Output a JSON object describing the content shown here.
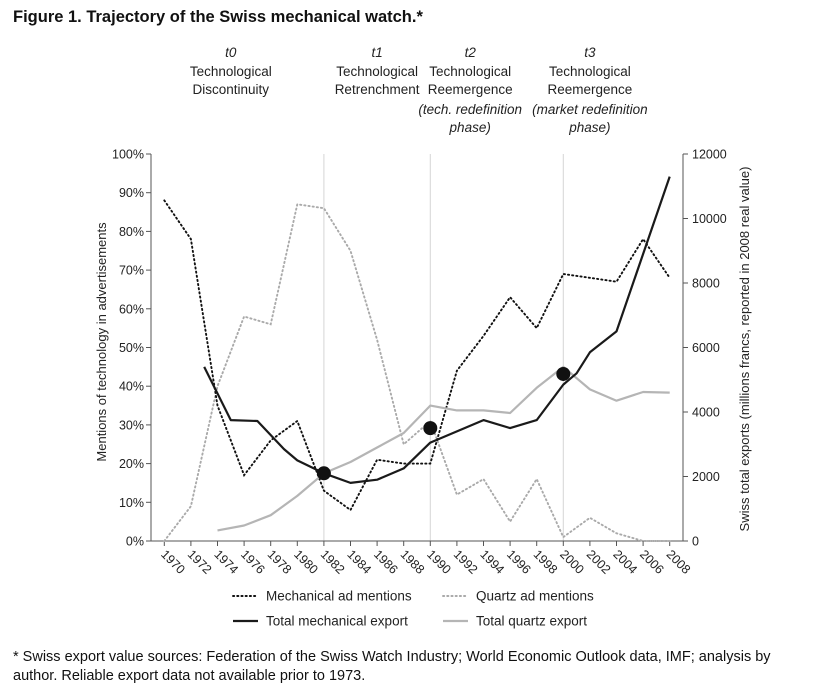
{
  "figure": {
    "title": "Figure 1.  Trajectory of the Swiss mechanical watch.*",
    "footnote": "* Swiss export value sources: Federation of the Swiss Watch Industry; World Economic Outlook data, IMF; analysis by author. Reliable export data not available prior to 1973."
  },
  "phases": [
    {
      "id": "t0",
      "lines": [
        "Technological",
        "Discontinuity"
      ],
      "sub": [],
      "year": 1975
    },
    {
      "id": "t1",
      "lines": [
        "Technological",
        "Retrenchment"
      ],
      "sub": [],
      "year": 1986
    },
    {
      "id": "t2",
      "lines": [
        "Technological",
        "Reemergence"
      ],
      "sub": [
        "(tech. redefinition",
        "phase)"
      ],
      "year": 1993
    },
    {
      "id": "t3",
      "lines": [
        "Technological",
        "Reemergence"
      ],
      "sub": [
        "(market redefinition",
        "phase)"
      ],
      "year": 2002
    }
  ],
  "chart_data": {
    "type": "line",
    "title": "",
    "xlabel": "",
    "ylabel": "Mentions of technology in advertisements",
    "y2label": "Swiss total exports (millions francs, reported in 2008 real value)",
    "x_ticks": [
      1970,
      1972,
      1974,
      1976,
      1978,
      1980,
      1982,
      1984,
      1986,
      1988,
      1990,
      1992,
      1994,
      1996,
      1998,
      2000,
      2002,
      2004,
      2006,
      2008
    ],
    "xlim": [
      1969,
      2009
    ],
    "ylim": [
      0,
      100
    ],
    "y_ticks": [
      "0%",
      "10%",
      "20%",
      "30%",
      "40%",
      "50%",
      "60%",
      "70%",
      "80%",
      "90%",
      "100%"
    ],
    "y2lim": [
      0,
      12000
    ],
    "y2_ticks": [
      0,
      2000,
      4000,
      6000,
      8000,
      10000,
      12000
    ],
    "vertical_gridlines": [
      1982,
      1990,
      2000
    ],
    "legend_position": "bottom",
    "series": [
      {
        "name": "Mechanical ad mentions",
        "axis": "left",
        "style": "dotted",
        "color": "#111111",
        "x": [
          1970,
          1972,
          1974,
          1976,
          1978,
          1980,
          1982,
          1984,
          1986,
          1988,
          1990,
          1992,
          1994,
          1996,
          1998,
          2000,
          2002,
          2004,
          2006,
          2008
        ],
        "y": [
          88,
          78,
          35,
          17,
          26,
          31,
          13,
          8,
          21,
          20,
          20,
          44,
          53,
          63,
          55,
          69,
          68,
          67,
          78,
          68
        ]
      },
      {
        "name": "Quartz ad mentions",
        "axis": "left",
        "style": "dotted",
        "color": "#aaaaaa",
        "x": [
          1970,
          1972,
          1974,
          1976,
          1978,
          1980,
          1982,
          1984,
          1986,
          1988,
          1990,
          1992,
          1994,
          1996,
          1998,
          2000,
          2002,
          2004,
          2006,
          2008
        ],
        "y": [
          0,
          9,
          40,
          58,
          56,
          87,
          86,
          75,
          52,
          25,
          31,
          12,
          16,
          5,
          16,
          1,
          6,
          2,
          0,
          0
        ]
      },
      {
        "name": "Total mechanical export",
        "axis": "right",
        "style": "solid",
        "color": "#1a1a1a",
        "x": [
          1973,
          1975,
          1977,
          1979,
          1980,
          1982,
          1984,
          1986,
          1988,
          1990,
          1992,
          1994,
          1996,
          1998,
          2000,
          2001,
          2002,
          2004,
          2006,
          2008
        ],
        "y": [
          5400,
          3750,
          3720,
          2850,
          2500,
          2100,
          1800,
          1900,
          2250,
          3050,
          3400,
          3750,
          3500,
          3750,
          4850,
          5200,
          5850,
          6500,
          8900,
          11300
        ]
      },
      {
        "name": "Total quartz export",
        "axis": "right",
        "style": "solid",
        "color": "#b5b5b5",
        "x": [
          1974,
          1976,
          1978,
          1980,
          1982,
          1984,
          1986,
          1988,
          1990,
          1992,
          1994,
          1996,
          1998,
          2000,
          2002,
          2004,
          2006,
          2008
        ],
        "y": [
          330,
          480,
          800,
          1400,
          2100,
          2450,
          2900,
          3350,
          4200,
          4050,
          4050,
          3970,
          4750,
          5400,
          4700,
          4350,
          4620,
          4600
        ]
      }
    ],
    "markers": [
      {
        "x": 1982,
        "y": 2100,
        "axis": "right"
      },
      {
        "x": 1990,
        "y": 3500,
        "axis": "right"
      },
      {
        "x": 2000,
        "y": 5180,
        "axis": "right"
      }
    ]
  }
}
